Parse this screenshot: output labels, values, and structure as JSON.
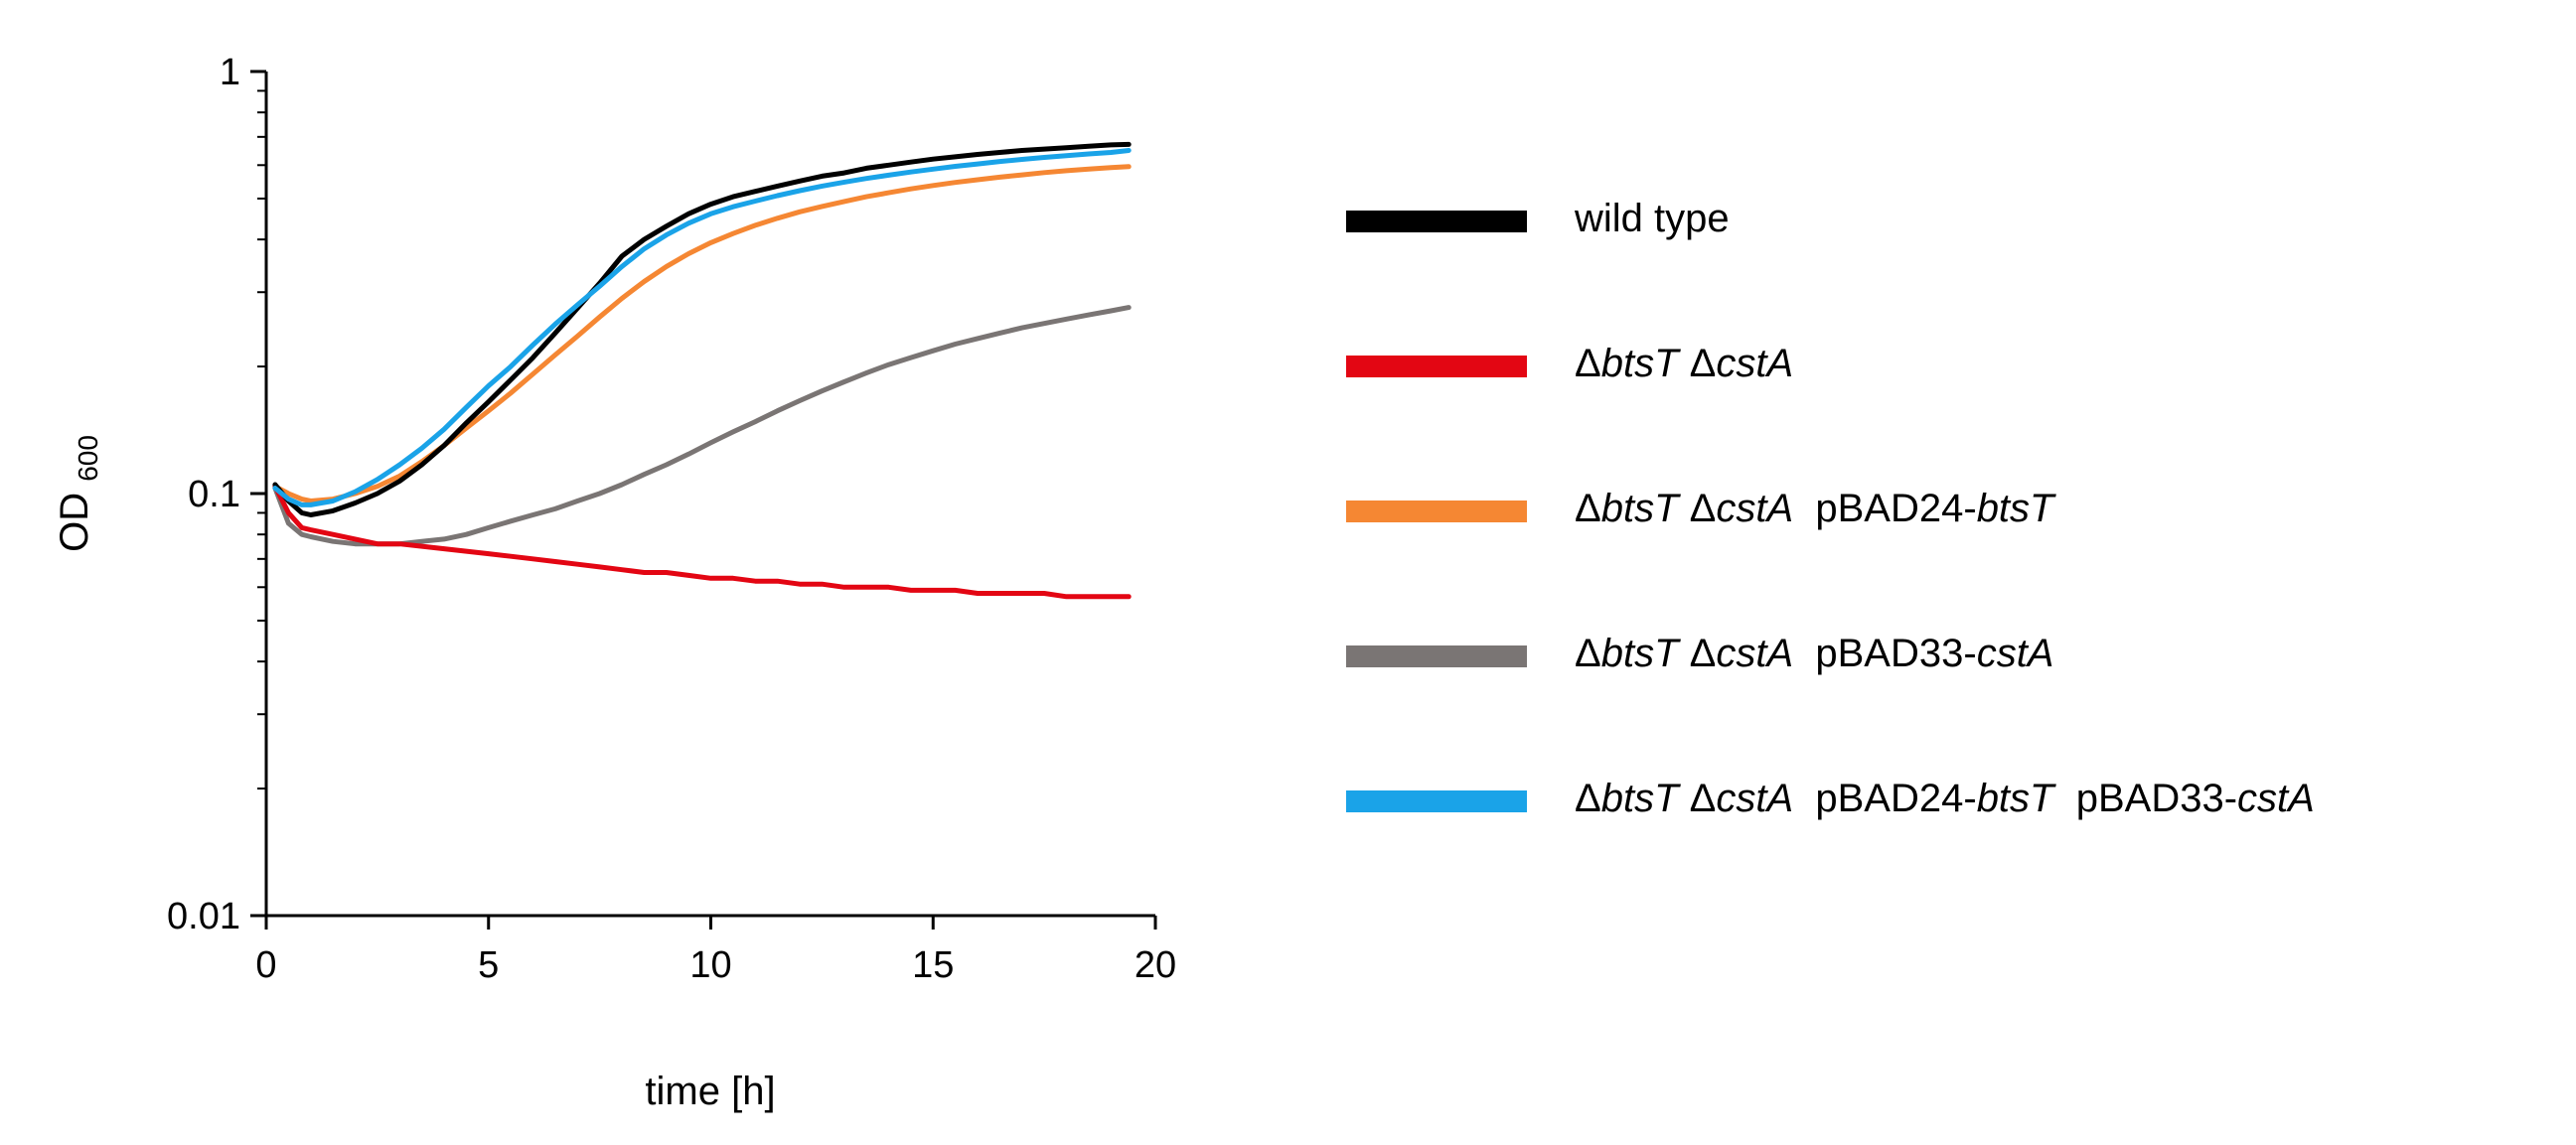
{
  "chart_data": {
    "type": "line",
    "title": "",
    "xlabel": "time [h]",
    "ylabel": "OD",
    "ylabel_subscript": "600",
    "xlim": [
      0,
      20
    ],
    "ylim": [
      0.01,
      1
    ],
    "yscale": "log",
    "grid": false,
    "legend_position": "right",
    "x_ticks": [
      0,
      5,
      10,
      15,
      20
    ],
    "x_tick_labels": [
      "0",
      "5",
      "10",
      "15",
      "20"
    ],
    "y_ticks": [
      0.01,
      0.1,
      1
    ],
    "y_tick_labels": [
      "0.01",
      "0.1",
      "1"
    ],
    "x": [
      0.2,
      0.5,
      0.8,
      1,
      1.5,
      2,
      2.5,
      3,
      3.5,
      4,
      4.5,
      5,
      5.5,
      6,
      6.5,
      7,
      7.5,
      8,
      8.5,
      9,
      9.5,
      10,
      10.5,
      11,
      11.5,
      12,
      12.5,
      13,
      13.5,
      14,
      14.5,
      15,
      15.5,
      16,
      16.5,
      17,
      17.5,
      18,
      18.5,
      19,
      19.4
    ],
    "series": [
      {
        "name": "wild type",
        "color": "#000000",
        "values": [
          0.105,
          0.096,
          0.09,
          0.089,
          0.091,
          0.095,
          0.1,
          0.107,
          0.117,
          0.13,
          0.147,
          0.165,
          0.186,
          0.21,
          0.24,
          0.275,
          0.315,
          0.365,
          0.4,
          0.43,
          0.46,
          0.485,
          0.505,
          0.52,
          0.535,
          0.55,
          0.565,
          0.575,
          0.59,
          0.6,
          0.61,
          0.62,
          0.628,
          0.636,
          0.643,
          0.65,
          0.655,
          0.66,
          0.665,
          0.67,
          0.672
        ]
      },
      {
        "name": "ΔbtsT ΔcstA",
        "color": "#e30613",
        "values": [
          0.104,
          0.09,
          0.083,
          0.082,
          0.08,
          0.078,
          0.076,
          0.076,
          0.075,
          0.074,
          0.073,
          0.072,
          0.071,
          0.07,
          0.069,
          0.068,
          0.067,
          0.066,
          0.065,
          0.065,
          0.064,
          0.063,
          0.063,
          0.062,
          0.062,
          0.061,
          0.061,
          0.06,
          0.06,
          0.06,
          0.059,
          0.059,
          0.059,
          0.058,
          0.058,
          0.058,
          0.058,
          0.057,
          0.057,
          0.057,
          0.057
        ]
      },
      {
        "name": "ΔbtsT ΔcstA  pBAD24-btsT",
        "color": "#f58733",
        "values": [
          0.104,
          0.1,
          0.097,
          0.096,
          0.097,
          0.1,
          0.104,
          0.11,
          0.119,
          0.13,
          0.143,
          0.157,
          0.173,
          0.192,
          0.213,
          0.236,
          0.262,
          0.29,
          0.318,
          0.345,
          0.37,
          0.393,
          0.413,
          0.432,
          0.449,
          0.465,
          0.479,
          0.492,
          0.505,
          0.516,
          0.527,
          0.537,
          0.546,
          0.554,
          0.562,
          0.569,
          0.576,
          0.582,
          0.587,
          0.592,
          0.595
        ]
      },
      {
        "name": "ΔbtsT ΔcstA  pBAD33-cstA",
        "color": "#7a7574",
        "values": [
          0.103,
          0.085,
          0.08,
          0.079,
          0.077,
          0.076,
          0.076,
          0.076,
          0.077,
          0.078,
          0.08,
          0.083,
          0.086,
          0.089,
          0.092,
          0.096,
          0.1,
          0.105,
          0.111,
          0.117,
          0.124,
          0.132,
          0.14,
          0.148,
          0.157,
          0.166,
          0.175,
          0.184,
          0.193,
          0.202,
          0.21,
          0.218,
          0.226,
          0.233,
          0.24,
          0.247,
          0.253,
          0.259,
          0.265,
          0.271,
          0.276
        ]
      },
      {
        "name": "ΔbtsT ΔcstA  pBAD24-btsT  pBAD33-cstA",
        "color": "#1aa3e8",
        "values": [
          0.103,
          0.097,
          0.094,
          0.094,
          0.096,
          0.101,
          0.108,
          0.117,
          0.128,
          0.142,
          0.16,
          0.18,
          0.2,
          0.225,
          0.252,
          0.28,
          0.31,
          0.345,
          0.38,
          0.41,
          0.437,
          0.46,
          0.478,
          0.493,
          0.508,
          0.522,
          0.535,
          0.547,
          0.558,
          0.568,
          0.578,
          0.587,
          0.596,
          0.604,
          0.612,
          0.619,
          0.626,
          0.632,
          0.638,
          0.643,
          0.65
        ]
      }
    ]
  },
  "legend": [
    {
      "prefix": "Δ",
      "g1": "btsT",
      "mid": " Δ",
      "g2": "cstA",
      "p1": "",
      "p1g": "",
      "p2": "",
      "p2g": ""
    },
    {
      "prefix": "Δ",
      "g1": "btsT",
      "mid": " Δ",
      "g2": "cstA",
      "p1": "  pBAD24-",
      "p1g": "btsT",
      "p2": "",
      "p2g": ""
    },
    {
      "prefix": "Δ",
      "g1": "btsT",
      "mid": " Δ",
      "g2": "cstA",
      "p1": "  pBAD33-",
      "p1g": "cstA",
      "p2": "",
      "p2g": ""
    },
    {
      "prefix": "Δ",
      "g1": "btsT",
      "mid": " Δ",
      "g2": "cstA",
      "p1": "  pBAD24-",
      "p1g": "btsT",
      "p2": "  pBAD33-",
      "p2g": "cstA"
    }
  ]
}
